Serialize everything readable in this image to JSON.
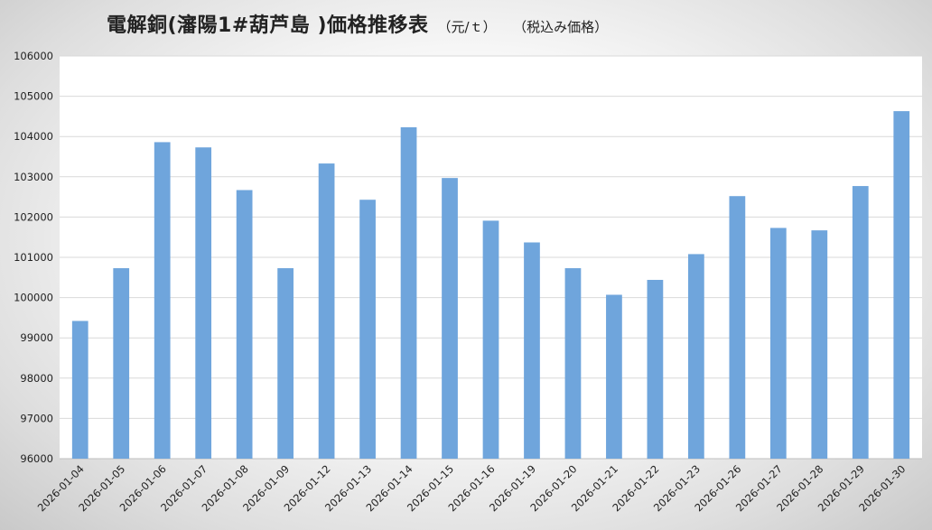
{
  "chart_data": {
    "type": "bar",
    "title": "電解銅(瀋陽1#葫芦島 )価格推移表",
    "unit": "（元/ｔ）",
    "note": "（税込み価格）",
    "xlabel": "",
    "ylabel": "",
    "ylim": [
      96000,
      106000
    ],
    "ytick_step": 1000,
    "grid": true,
    "bar_color": "#6fa5dc",
    "categories": [
      "2026-01-04",
      "2026-01-05",
      "2026-01-06",
      "2026-01-07",
      "2026-01-08",
      "2026-01-09",
      "2026-01-12",
      "2026-01-13",
      "2026-01-14",
      "2026-01-15",
      "2026-01-16",
      "2026-01-19",
      "2026-01-20",
      "2026-01-21",
      "2026-01-22",
      "2026-01-23",
      "2026-01-26",
      "2026-01-27",
      "2026-01-28",
      "2026-01-29",
      "2026-01-30"
    ],
    "values": [
      99420,
      100730,
      103860,
      103730,
      102670,
      100730,
      103330,
      102430,
      104230,
      102970,
      101910,
      101370,
      100730,
      100070,
      100440,
      101080,
      102520,
      101730,
      101670,
      102770,
      104630
    ]
  }
}
